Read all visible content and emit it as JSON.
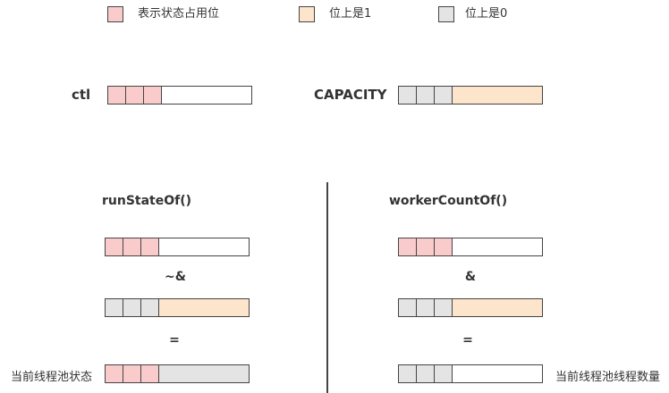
{
  "colors": {
    "pink": "#f9cccb",
    "peach": "#fde5cc",
    "gray": "#e4e4e4",
    "border": "#444444"
  },
  "legend": [
    {
      "color": "pink",
      "label": "表示状态占用位"
    },
    {
      "color": "peach",
      "label": "位上是1"
    },
    {
      "color": "gray",
      "label": "位上是0"
    }
  ],
  "top": {
    "ctl_label": "ctl",
    "capacity_label": "CAPACITY"
  },
  "left": {
    "title": "runStateOf()",
    "op1": "~&",
    "op2": "=",
    "result_label": "当前线程池状态"
  },
  "right": {
    "title": "workerCountOf()",
    "op1": "&",
    "op2": "=",
    "result_label": "当前线程池线程数量"
  },
  "bars": {
    "ctl": {
      "cells": [
        "pink",
        "pink",
        "pink"
      ],
      "rest": "white"
    },
    "capacity": {
      "cells": [
        "gray",
        "gray",
        "gray"
      ],
      "rest": "peach"
    },
    "left_ctl": {
      "cells": [
        "pink",
        "pink",
        "pink"
      ],
      "rest": "white"
    },
    "left_capacity": {
      "cells": [
        "gray",
        "gray",
        "gray"
      ],
      "rest": "peach"
    },
    "left_result": {
      "cells": [
        "pink",
        "pink",
        "pink"
      ],
      "rest": "gray"
    },
    "right_ctl": {
      "cells": [
        "pink",
        "pink",
        "pink"
      ],
      "rest": "white"
    },
    "right_capacity": {
      "cells": [
        "gray",
        "gray",
        "gray"
      ],
      "rest": "peach"
    },
    "right_result": {
      "cells": [
        "gray",
        "gray",
        "gray"
      ],
      "rest": "white"
    }
  }
}
